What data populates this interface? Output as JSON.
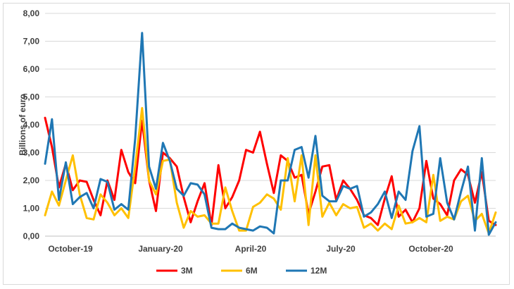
{
  "chart_data": {
    "type": "line",
    "title": "",
    "xlabel": "",
    "ylabel": "Billions of euro",
    "ylim": [
      0,
      8
    ],
    "yticks": [
      "0,00",
      "1,00",
      "2,00",
      "3,00",
      "4,00",
      "5,00",
      "6,00",
      "7,00",
      "8,00"
    ],
    "xticks": [
      {
        "index": 0,
        "label": "October-19"
      },
      {
        "index": 13,
        "label": "January-20"
      },
      {
        "index": 26,
        "label": "April-20"
      },
      {
        "index": 39,
        "label": "July-20"
      },
      {
        "index": 52,
        "label": "October-20"
      }
    ],
    "grid": "horizontal",
    "legend": "bottom",
    "series": [
      {
        "name": "3M",
        "color": "#ff0000",
        "values": [
          4.25,
          3.2,
          1.75,
          2.6,
          1.65,
          2.0,
          1.95,
          1.3,
          0.75,
          2.0,
          1.3,
          3.1,
          2.3,
          1.9,
          4.15,
          2.0,
          0.9,
          3.0,
          2.8,
          2.5,
          1.4,
          0.5,
          1.25,
          1.9,
          0.4,
          2.55,
          1.0,
          1.4,
          2.0,
          3.1,
          3.0,
          3.75,
          2.6,
          1.55,
          2.9,
          2.7,
          2.1,
          2.2,
          0.8,
          1.6,
          2.5,
          2.55,
          1.3,
          2.0,
          1.7,
          1.3,
          0.75,
          0.65,
          0.4,
          1.35,
          2.15,
          0.7,
          0.95,
          0.5,
          1.0,
          2.7,
          1.35,
          1.15,
          0.75,
          2.0,
          2.4,
          2.2,
          1.2,
          2.3,
          0.55,
          0.4
        ]
      },
      {
        "name": "6M",
        "color": "#ffc000",
        "values": [
          0.75,
          1.6,
          1.1,
          2.0,
          2.9,
          1.5,
          0.65,
          0.6,
          1.5,
          1.2,
          0.75,
          1.0,
          0.65,
          2.5,
          4.6,
          2.0,
          1.5,
          2.7,
          2.75,
          1.2,
          0.3,
          0.9,
          0.7,
          0.75,
          0.45,
          0.45,
          1.75,
          0.9,
          0.2,
          0.2,
          1.05,
          1.2,
          1.5,
          1.35,
          0.95,
          2.8,
          1.25,
          2.9,
          0.4,
          2.9,
          0.7,
          1.2,
          0.75,
          1.15,
          1.0,
          1.05,
          0.3,
          0.45,
          0.2,
          0.45,
          0.25,
          1.1,
          0.45,
          0.5,
          0.65,
          0.5,
          2.2,
          0.55,
          0.7,
          0.6,
          1.25,
          1.45,
          0.55,
          0.8,
          0.1,
          0.85
        ]
      },
      {
        "name": "12M",
        "color": "#1f77b4",
        "values": [
          2.6,
          4.2,
          1.3,
          2.65,
          1.15,
          1.4,
          1.55,
          1.0,
          2.05,
          1.95,
          0.95,
          1.15,
          0.95,
          3.5,
          7.3,
          2.5,
          1.7,
          3.35,
          2.7,
          1.7,
          1.45,
          1.9,
          1.85,
          1.5,
          0.3,
          0.25,
          0.25,
          0.45,
          0.3,
          0.25,
          0.2,
          0.35,
          0.3,
          0.1,
          2.0,
          2.0,
          3.1,
          3.2,
          2.1,
          3.6,
          1.45,
          1.25,
          1.25,
          1.8,
          1.7,
          1.8,
          0.7,
          0.85,
          1.15,
          1.6,
          0.65,
          1.6,
          1.3,
          3.05,
          3.95,
          0.7,
          0.8,
          2.8,
          1.2,
          0.6,
          1.6,
          2.5,
          0.2,
          2.8,
          0.05,
          0.5
        ]
      }
    ]
  }
}
